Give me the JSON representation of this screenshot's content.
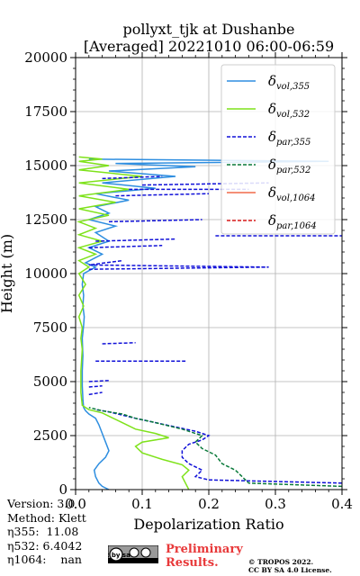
{
  "chart_data": {
    "type": "line",
    "title": "pollyxt_tjk at Dushanbe",
    "subtitle": "[Averaged] 20221010 06:00-06:59",
    "xlabel": "Depolarization Ratio",
    "ylabel": "Height (m)",
    "xlim": [
      0,
      0.4
    ],
    "ylim": [
      0,
      20000
    ],
    "x_ticks": [
      "0.0",
      "0.1",
      "0.2",
      "0.3",
      "0.4"
    ],
    "y_ticks": [
      "0",
      "2500",
      "5000",
      "7500",
      "10000",
      "12500",
      "15000",
      "17500",
      "20000"
    ],
    "grid": true,
    "legend_position": "top-right",
    "series": [
      {
        "name": "δvol,355",
        "label_main": "δ",
        "label_sub": "vol,355",
        "color": "#2e8ee0",
        "style": "solid",
        "points": [
          [
            0.05,
            0
          ],
          [
            0.04,
            150
          ],
          [
            0.035,
            300
          ],
          [
            0.03,
            600
          ],
          [
            0.028,
            900
          ],
          [
            0.035,
            1200
          ],
          [
            0.045,
            1500
          ],
          [
            0.05,
            1800
          ],
          [
            0.045,
            2200
          ],
          [
            0.04,
            2600
          ],
          [
            0.035,
            3000
          ],
          [
            0.03,
            3300
          ],
          [
            0.02,
            3500
          ],
          [
            0.015,
            3650
          ],
          [
            0.012,
            3800
          ],
          [
            0.011,
            4200
          ],
          [
            0.01,
            4800
          ],
          [
            0.01,
            5500
          ],
          [
            0.011,
            6200
          ],
          [
            0.01,
            7000
          ],
          [
            0.012,
            7600
          ],
          [
            0.013,
            8000
          ],
          [
            0.011,
            8500
          ],
          [
            0.012,
            9000
          ],
          [
            0.01,
            9500
          ],
          [
            0.012,
            10000
          ],
          [
            0.03,
            10300
          ],
          [
            0.015,
            10500
          ],
          [
            0.04,
            10900
          ],
          [
            0.02,
            11200
          ],
          [
            0.05,
            11500
          ],
          [
            0.03,
            11900
          ],
          [
            0.06,
            12200
          ],
          [
            0.02,
            12500
          ],
          [
            0.05,
            12800
          ],
          [
            0.03,
            13100
          ],
          [
            0.08,
            13400
          ],
          [
            0.03,
            13700
          ],
          [
            0.12,
            13950
          ],
          [
            0.04,
            14200
          ],
          [
            0.15,
            14500
          ],
          [
            0.05,
            14750
          ],
          [
            0.18,
            14950
          ],
          [
            0.06,
            15100
          ],
          [
            0.38,
            15200
          ],
          [
            0.02,
            15300
          ]
        ]
      },
      {
        "name": "δvol,532",
        "label_main": "δ",
        "label_sub": "vol,532",
        "color": "#7ee21a",
        "style": "solid",
        "points": [
          [
            0.17,
            0
          ],
          [
            0.165,
            300
          ],
          [
            0.16,
            600
          ],
          [
            0.17,
            900
          ],
          [
            0.16,
            1150
          ],
          [
            0.13,
            1400
          ],
          [
            0.1,
            1700
          ],
          [
            0.09,
            2000
          ],
          [
            0.1,
            2200
          ],
          [
            0.14,
            2400
          ],
          [
            0.12,
            2600
          ],
          [
            0.09,
            2800
          ],
          [
            0.07,
            3100
          ],
          [
            0.05,
            3400
          ],
          [
            0.04,
            3550
          ],
          [
            0.02,
            3700
          ],
          [
            0.01,
            3900
          ],
          [
            0.008,
            4500
          ],
          [
            0.008,
            5500
          ],
          [
            0.01,
            6500
          ],
          [
            0.008,
            7000
          ],
          [
            0.01,
            7500
          ],
          [
            0.005,
            8000
          ],
          [
            0.012,
            8500
          ],
          [
            0.005,
            9000
          ],
          [
            0.015,
            9500
          ],
          [
            0.005,
            10000
          ],
          [
            0.02,
            10300
          ],
          [
            0.005,
            10600
          ],
          [
            0.03,
            10900
          ],
          [
            0.005,
            11200
          ],
          [
            0.04,
            11500
          ],
          [
            0.005,
            11800
          ],
          [
            0.03,
            12100
          ],
          [
            0.005,
            12400
          ],
          [
            0.05,
            12700
          ],
          [
            0.005,
            13000
          ],
          [
            0.06,
            13300
          ],
          [
            0.005,
            13600
          ],
          [
            0.08,
            13900
          ],
          [
            0.005,
            14200
          ],
          [
            0.1,
            14500
          ],
          [
            0.005,
            14800
          ],
          [
            0.05,
            15000
          ],
          [
            0.005,
            15200
          ],
          [
            0.04,
            15300
          ],
          [
            0.005,
            15400
          ]
        ]
      },
      {
        "name": "δpar,355",
        "label_main": "δ",
        "label_sub": "par,355",
        "color": "#1010d8",
        "style": "dashed",
        "points": [
          [
            0.4,
            300
          ],
          [
            0.2,
            450
          ],
          [
            0.18,
            600
          ],
          [
            0.19,
            900
          ],
          [
            0.17,
            1200
          ],
          [
            0.16,
            1500
          ],
          [
            0.16,
            1800
          ],
          [
            0.17,
            2100
          ],
          [
            0.19,
            2300
          ],
          [
            0.2,
            2500
          ],
          [
            0.18,
            2700
          ],
          [
            0.15,
            2900
          ],
          [
            0.12,
            3100
          ],
          [
            0.09,
            3300
          ],
          [
            0.07,
            3450
          ],
          [
            0.05,
            3600
          ],
          [
            0.03,
            3700
          ],
          [
            null,
            null
          ],
          [
            0.02,
            4400
          ],
          [
            0.04,
            4500
          ],
          [
            null,
            null
          ],
          [
            0.02,
            4750
          ],
          [
            0.04,
            4800
          ],
          [
            null,
            null
          ],
          [
            0.02,
            5000
          ],
          [
            0.05,
            5050
          ],
          [
            null,
            null
          ],
          [
            0.03,
            5950
          ],
          [
            0.165,
            5950
          ],
          [
            null,
            null
          ],
          [
            0.04,
            6750
          ],
          [
            0.09,
            6800
          ],
          [
            null,
            null
          ],
          [
            0.02,
            10200
          ],
          [
            0.29,
            10300
          ],
          [
            0.02,
            10400
          ],
          [
            0.07,
            10600
          ],
          [
            null,
            null
          ],
          [
            0.02,
            11200
          ],
          [
            0.13,
            11300
          ],
          [
            null,
            null
          ],
          [
            0.03,
            11500
          ],
          [
            0.15,
            11600
          ],
          [
            null,
            null
          ],
          [
            0.21,
            11750
          ],
          [
            0.4,
            11750
          ],
          [
            null,
            null
          ],
          [
            0.05,
            12400
          ],
          [
            0.19,
            12500
          ],
          [
            null,
            null
          ],
          [
            0.06,
            13600
          ],
          [
            0.2,
            13700
          ],
          [
            null,
            null
          ],
          [
            0.08,
            13900
          ],
          [
            0.26,
            13900
          ],
          [
            null,
            null
          ],
          [
            0.1,
            14100
          ],
          [
            0.29,
            14200
          ],
          [
            null,
            null
          ],
          [
            0.04,
            14400
          ],
          [
            0.13,
            14500
          ]
        ]
      },
      {
        "name": "δpar,532",
        "label_main": "δ",
        "label_sub": "par,532",
        "color": "#0a7a3a",
        "style": "dashed",
        "points": [
          [
            0.4,
            150
          ],
          [
            0.26,
            300
          ],
          [
            0.25,
            600
          ],
          [
            0.24,
            900
          ],
          [
            0.22,
            1200
          ],
          [
            0.21,
            1600
          ],
          [
            0.19,
            1900
          ],
          [
            0.18,
            2200
          ],
          [
            0.19,
            2500
          ],
          [
            0.16,
            2800
          ],
          [
            0.12,
            3100
          ],
          [
            0.09,
            3300
          ],
          [
            0.07,
            3500
          ],
          [
            0.04,
            3650
          ],
          [
            0.02,
            3800
          ]
        ]
      },
      {
        "name": "δvol,1064",
        "label_main": "δ",
        "label_sub": "vol,1064",
        "color": "#f06a4a",
        "style": "solid",
        "points": []
      },
      {
        "name": "δpar,1064",
        "label_main": "δ",
        "label_sub": "par,1064",
        "color": "#d81a1a",
        "style": "dashed",
        "points": []
      }
    ]
  },
  "meta": {
    "version": "Version: 3.0",
    "method": "Method: Klett",
    "eta355": "η355:  11.08",
    "eta532": "η532: 6.4042",
    "eta1064": "η1064:    nan"
  },
  "footer": {
    "preliminary_line1": "Preliminary",
    "preliminary_line2": "Results.",
    "copyright_line1": "© TROPOS 2022.",
    "copyright_line2": "CC BY SA 4.0 License.",
    "cc_badge": "cc by sa"
  }
}
